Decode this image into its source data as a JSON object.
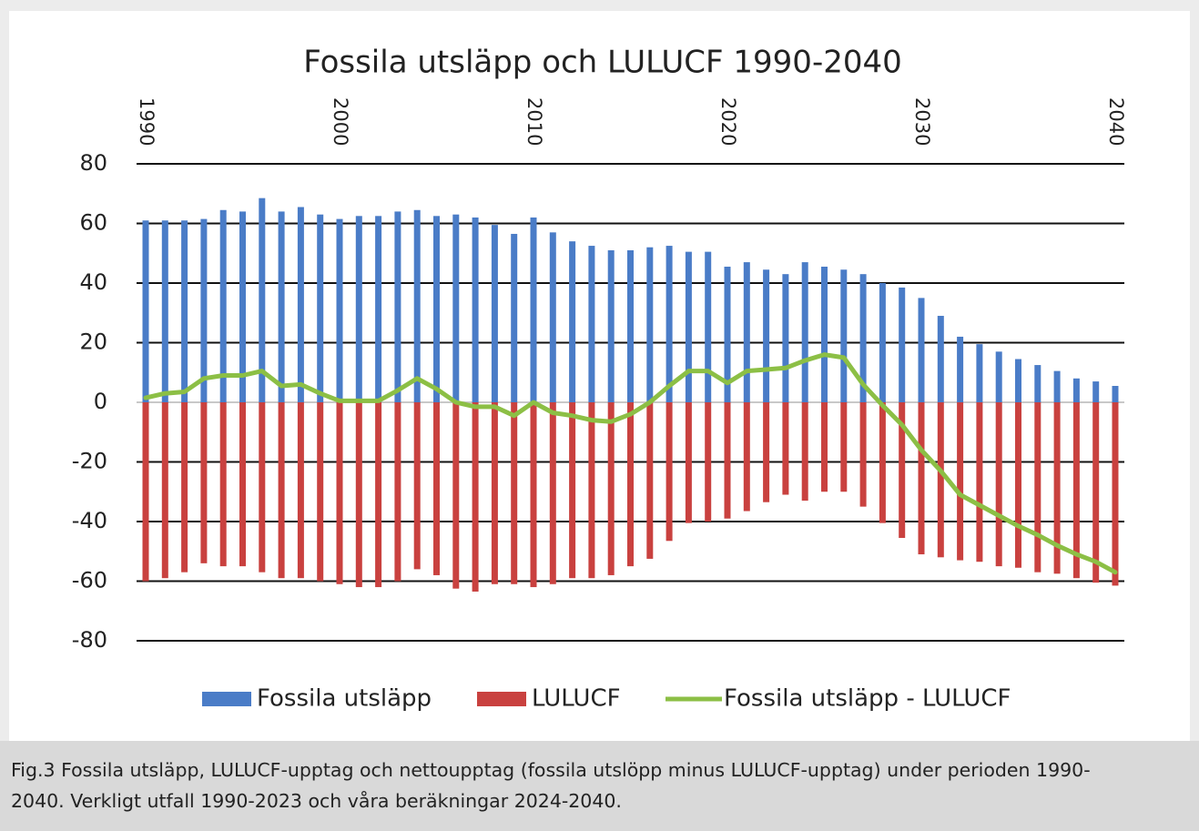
{
  "chart_data": {
    "type": "bar",
    "title": "Fossila utsläpp och LULUCF 1990-2040",
    "x": [
      1990,
      1991,
      1992,
      1993,
      1994,
      1995,
      1996,
      1997,
      1998,
      1999,
      2000,
      2001,
      2002,
      2003,
      2004,
      2005,
      2006,
      2007,
      2008,
      2009,
      2010,
      2011,
      2012,
      2013,
      2014,
      2015,
      2016,
      2017,
      2018,
      2019,
      2020,
      2021,
      2022,
      2023,
      2024,
      2025,
      2026,
      2027,
      2028,
      2029,
      2030,
      2031,
      2032,
      2033,
      2034,
      2035,
      2036,
      2037,
      2038,
      2039,
      2040
    ],
    "xlim": [
      1990,
      2040
    ],
    "xticks": [
      1990,
      2000,
      2010,
      2020,
      2030,
      2040
    ],
    "ylim": [
      -80,
      80
    ],
    "yticks": [
      -80,
      -60,
      -40,
      -20,
      0,
      20,
      40,
      60,
      80
    ],
    "grid": true,
    "series": [
      {
        "name": "Fossila utsläpp",
        "type": "bar",
        "color": "#4a7cc7",
        "values": [
          61,
          61,
          61,
          61.5,
          64.5,
          64,
          68.5,
          64,
          65.5,
          63,
          61.5,
          62.5,
          62.5,
          64,
          64.5,
          62.5,
          63,
          62,
          59.5,
          56.5,
          62,
          57,
          54,
          52.5,
          51,
          51,
          52,
          52.5,
          50.5,
          50.5,
          45.5,
          47,
          44.5,
          43,
          47,
          45.5,
          44.5,
          43,
          40,
          38.5,
          35,
          29,
          22,
          19.5,
          17,
          14.5,
          12.5,
          10.5,
          8,
          7,
          5.5
        ]
      },
      {
        "name": "LULUCF",
        "type": "bar",
        "color": "#c9413f",
        "values": [
          -60,
          -59,
          -57,
          -54,
          -55,
          -55,
          -57,
          -59,
          -59,
          -60,
          -61,
          -62,
          -62,
          -60,
          -56,
          -58,
          -62.5,
          -63.5,
          -61,
          -61,
          -62,
          -61,
          -59,
          -59,
          -58,
          -55,
          -52.5,
          -46.5,
          -40.5,
          -40,
          -39,
          -36.5,
          -33.5,
          -31,
          -33,
          -30,
          -30,
          -35,
          -40.5,
          -45.5,
          -51,
          -52,
          -53,
          -53.5,
          -55,
          -55.5,
          -57,
          -57.5,
          -59,
          -60.5,
          -61.5
        ]
      },
      {
        "name": "Fossila utsläpp - LULUCF",
        "type": "line",
        "color": "#8cbf45",
        "values": [
          1.5,
          3,
          3.5,
          8,
          9,
          9,
          10.5,
          5.5,
          6,
          3,
          0.5,
          0.5,
          0.5,
          4,
          8,
          4.5,
          0,
          -1.5,
          -1.5,
          -4.5,
          0,
          -3.5,
          -4.5,
          -6,
          -6.5,
          -4,
          0,
          5.5,
          10.5,
          10.5,
          6.5,
          10.5,
          11,
          11.5,
          14,
          16,
          15,
          6,
          -1,
          -7.5,
          -16,
          -23,
          -31,
          -34.5,
          -38,
          -41.5,
          -44.5,
          -48,
          -51,
          -53.5,
          -57
        ]
      }
    ]
  },
  "caption": {
    "lines": [
      "Fig.3 Fossila utsläpp, LULUCF-upptag och nettoupptag (fossila utslöpp minus LULUCF-upptag) under perioden 1990-",
      "2040. Verkligt utfall 1990-2023 och våra beräkningar 2024-2040."
    ]
  }
}
